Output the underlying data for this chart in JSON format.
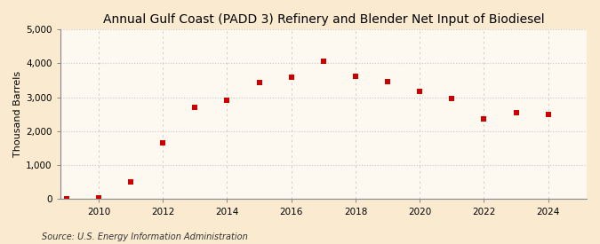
{
  "title": "Annual Gulf Coast (PADD 3) Refinery and Blender Net Input of Biodiesel",
  "ylabel": "Thousand Barrels",
  "source": "Source: U.S. Energy Information Administration",
  "background_color": "#faebd0",
  "plot_background_color": "#fdf8f0",
  "marker_color": "#cc0000",
  "marker": "s",
  "marker_size": 4,
  "years": [
    2009,
    2010,
    2011,
    2012,
    2013,
    2014,
    2015,
    2016,
    2017,
    2018,
    2019,
    2020,
    2021,
    2022,
    2023,
    2024
  ],
  "values": [
    20,
    30,
    510,
    1660,
    2700,
    2900,
    3440,
    3600,
    4060,
    3620,
    3460,
    3160,
    2960,
    2350,
    2550,
    2480
  ],
  "ylim": [
    0,
    5000
  ],
  "yticks": [
    0,
    1000,
    2000,
    3000,
    4000,
    5000
  ],
  "xlim": [
    2008.8,
    2025.2
  ],
  "xticks": [
    2010,
    2012,
    2014,
    2016,
    2018,
    2020,
    2022,
    2024
  ],
  "grid_color": "#c8c8c8",
  "title_fontsize": 10,
  "label_fontsize": 8,
  "tick_fontsize": 7.5,
  "source_fontsize": 7
}
